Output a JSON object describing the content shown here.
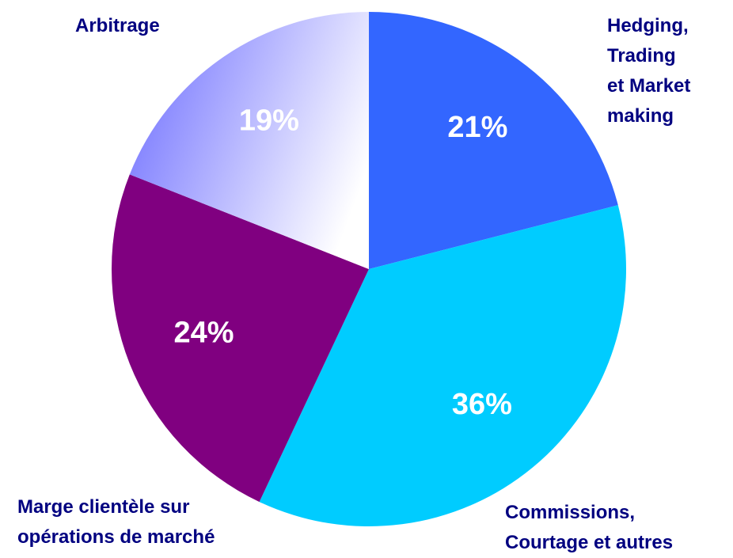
{
  "chart_data": {
    "type": "pie",
    "categories": [
      "Hedging,\nTrading\net Market\nmaking",
      "Commissions,\nCourtage et autres",
      "Marge clientèle sur\nopérations de marché",
      "Arbitrage"
    ],
    "values": [
      21,
      36,
      24,
      19
    ],
    "value_labels": [
      "21%",
      "36%",
      "24%",
      "19%"
    ],
    "colors": [
      "#3366ff",
      "#00ccff",
      "#800080",
      "#7373ff"
    ],
    "gradient_slices": [
      3
    ]
  }
}
